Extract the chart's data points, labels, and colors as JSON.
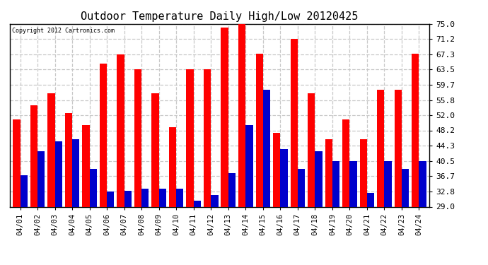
{
  "title": "Outdoor Temperature Daily High/Low 20120425",
  "copyright_text": "Copyright 2012 Cartronics.com",
  "dates": [
    "04/01",
    "04/02",
    "04/03",
    "04/04",
    "04/05",
    "04/06",
    "04/07",
    "04/08",
    "04/09",
    "04/10",
    "04/11",
    "04/12",
    "04/13",
    "04/14",
    "04/15",
    "04/16",
    "04/17",
    "04/18",
    "04/19",
    "04/20",
    "04/21",
    "04/22",
    "04/23",
    "04/24"
  ],
  "highs": [
    51.0,
    54.5,
    57.5,
    52.5,
    49.5,
    65.0,
    67.3,
    63.5,
    57.5,
    49.0,
    63.5,
    63.5,
    74.0,
    75.0,
    67.5,
    47.5,
    71.2,
    57.5,
    46.0,
    51.0,
    46.0,
    58.5,
    58.5,
    67.5
  ],
  "lows": [
    37.0,
    43.0,
    45.5,
    46.0,
    38.5,
    32.8,
    33.0,
    33.5,
    33.5,
    33.5,
    30.5,
    32.0,
    37.5,
    49.5,
    58.5,
    43.5,
    38.5,
    43.0,
    40.5,
    40.5,
    32.5,
    40.5,
    38.5,
    40.5
  ],
  "high_color": "#ff0000",
  "low_color": "#0000cc",
  "bg_color": "#ffffff",
  "grid_color": "#c8c8c8",
  "ytick_labels": [
    "29.0",
    "32.8",
    "36.7",
    "40.5",
    "44.3",
    "48.2",
    "52.0",
    "55.8",
    "59.7",
    "63.5",
    "67.3",
    "71.2",
    "75.0"
  ],
  "ytick_values": [
    29.0,
    32.8,
    36.7,
    40.5,
    44.3,
    48.2,
    52.0,
    55.8,
    59.7,
    63.5,
    67.3,
    71.2,
    75.0
  ],
  "ymin": 29.0,
  "ymax": 75.0,
  "bar_width": 0.42
}
